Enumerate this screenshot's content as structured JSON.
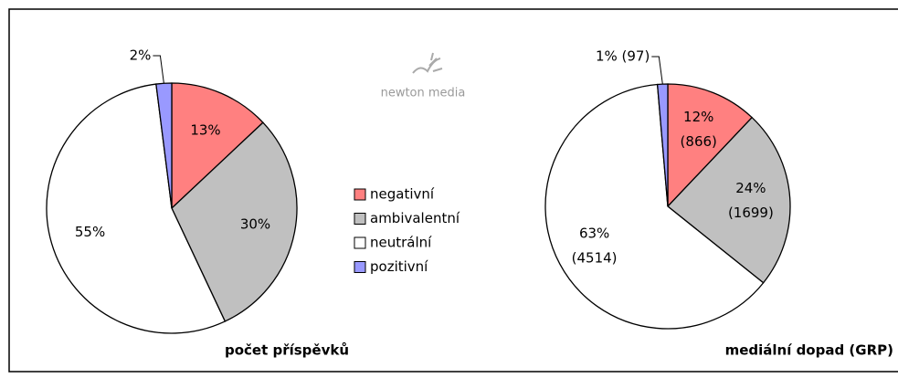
{
  "watermark": "newton media",
  "chart_data": [
    {
      "type": "pie",
      "title": "počet příspěvků",
      "categories": [
        "negativní",
        "ambivalentní",
        "neutrální",
        "pozitivní"
      ],
      "colors": [
        "#ff8080",
        "#c0c0c0",
        "#ffffff",
        "#9999ff"
      ],
      "values": [
        13,
        30,
        55,
        2
      ],
      "value_labels": [
        "13%",
        "30%",
        "55%",
        "2%"
      ]
    },
    {
      "type": "pie",
      "title": "mediální dopad (GRP)",
      "values": [
        866,
        1699,
        4514,
        97
      ],
      "value_labels": [
        "12% (866)",
        "24% (1699)",
        "63% (4514)",
        "1% (97)"
      ]
    }
  ]
}
